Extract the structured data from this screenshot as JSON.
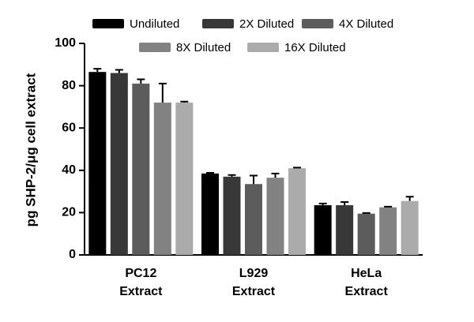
{
  "chart_data": {
    "type": "bar",
    "ylabel": "pg SHP-2/μg cell extract",
    "categories": [
      [
        "PC12",
        "Extract"
      ],
      [
        "L929",
        "Extract"
      ],
      [
        "HeLa",
        "Extract"
      ]
    ],
    "series": [
      {
        "name": "Undiluted",
        "color": "#000000",
        "values": [
          86.5,
          38.5,
          23.5
        ],
        "errors": [
          1.5,
          0.3,
          0.8
        ]
      },
      {
        "name": "2X Diluted",
        "color": "#383838",
        "values": [
          86,
          37,
          23.5
        ],
        "errors": [
          1.5,
          0.8,
          1.5
        ]
      },
      {
        "name": "4X Diluted",
        "color": "#5c5c5c",
        "values": [
          81,
          33.5,
          19.5
        ],
        "errors": [
          2,
          4,
          0.3
        ]
      },
      {
        "name": "8X Diluted",
        "color": "#828282",
        "values": [
          72,
          36.5,
          22.5
        ],
        "errors": [
          9,
          2,
          0.3
        ]
      },
      {
        "name": "16X Diluted",
        "color": "#ababab",
        "values": [
          72,
          41,
          25.5
        ],
        "errors": [
          0.5,
          0.3,
          2
        ]
      }
    ],
    "ylim": [
      0,
      100
    ],
    "yticks": [
      0,
      20,
      40,
      60,
      80,
      100
    ]
  }
}
